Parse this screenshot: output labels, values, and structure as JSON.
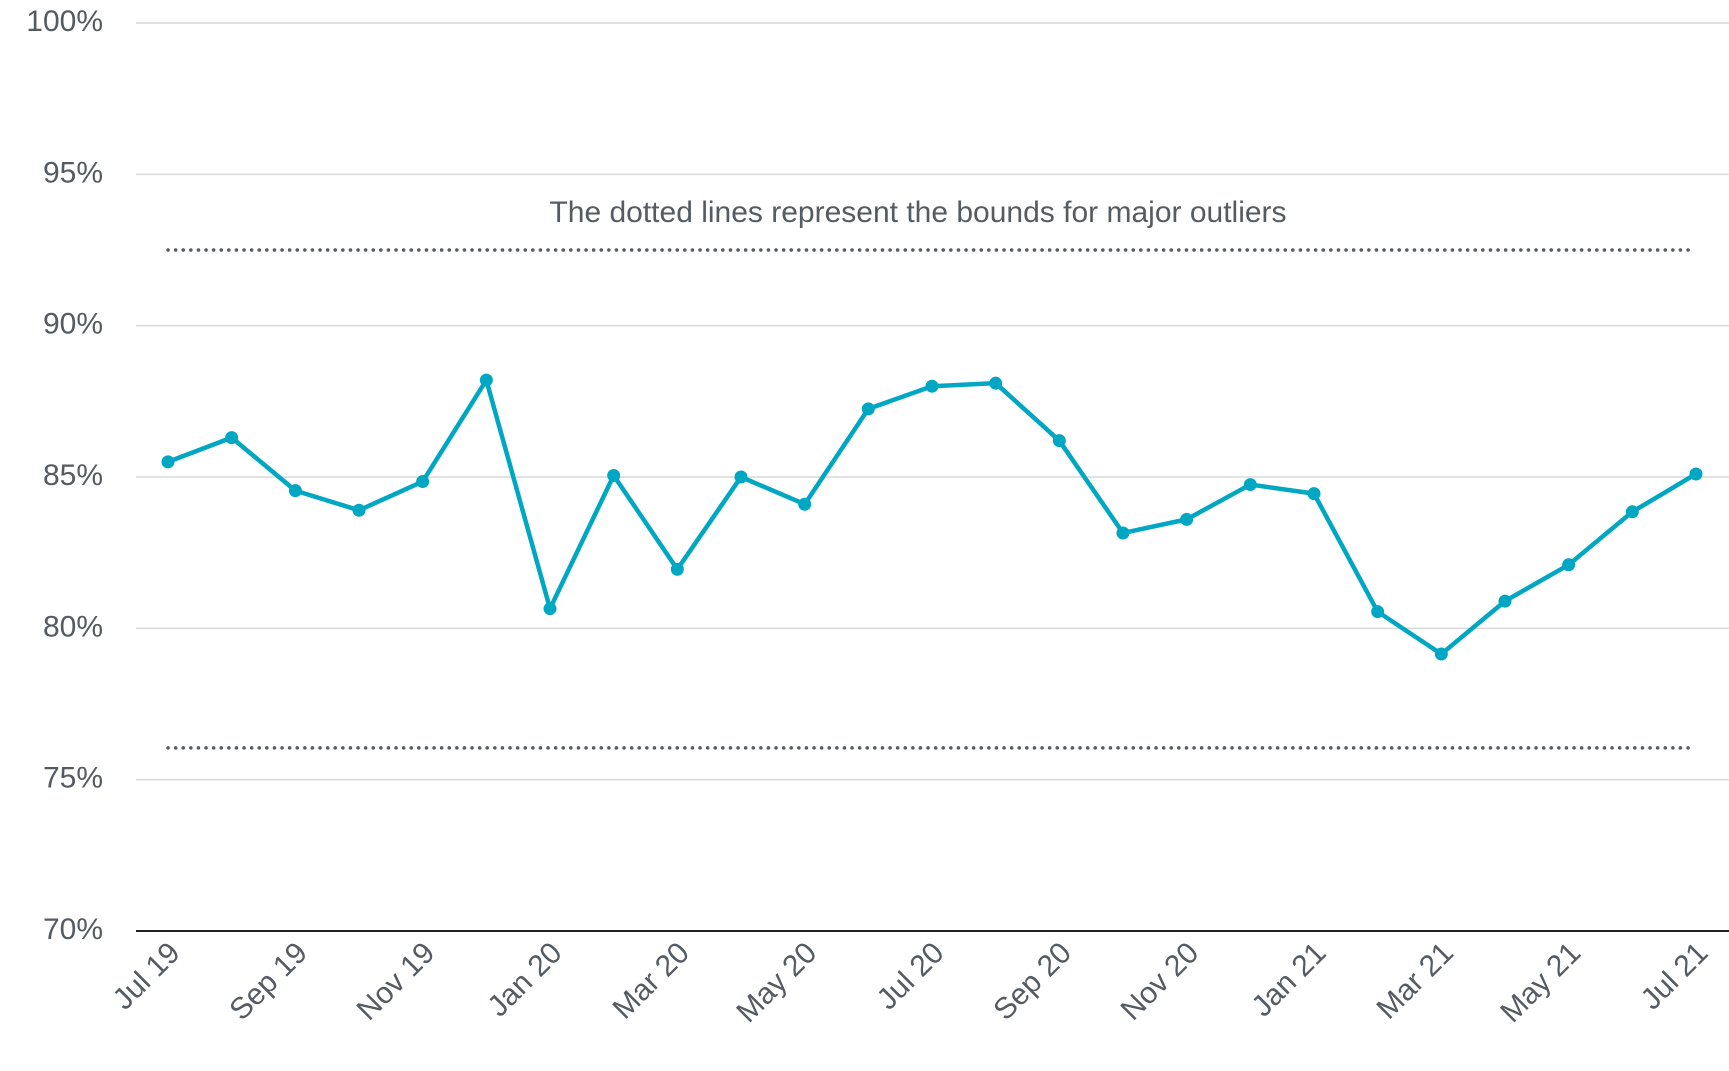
{
  "chart_data": {
    "type": "line",
    "annotation": "The dotted lines represent the bounds for major outliers",
    "categories": [
      "Jul 19",
      null,
      "Sep 19",
      null,
      "Nov 19",
      null,
      "Jan 20",
      null,
      "Mar 20",
      null,
      "May 20",
      null,
      "Jul 20",
      null,
      "Sep 20",
      null,
      "Nov 20",
      null,
      "Jan 21",
      null,
      "Mar 21",
      null,
      "May 21",
      null,
      "Jul 21"
    ],
    "series": [
      {
        "color": "#00a7c2",
        "values": [
          85.5,
          86.3,
          84.55,
          83.9,
          84.85,
          88.2,
          80.65,
          85.05,
          81.95,
          85.0,
          84.1,
          87.25,
          88.0,
          88.1,
          86.2,
          83.15,
          83.6,
          84.75,
          84.45,
          80.55,
          79.15,
          80.9,
          82.1,
          83.85,
          85.1
        ]
      }
    ],
    "reference_lines": [
      92.5,
      76.05
    ],
    "ylim": [
      70,
      100
    ],
    "yticks": [
      {
        "value": 70,
        "label": "70%"
      },
      {
        "value": 75,
        "label": "75%"
      },
      {
        "value": 80,
        "label": "80%"
      },
      {
        "value": 85,
        "label": "85%"
      },
      {
        "value": 90,
        "label": "90%"
      },
      {
        "value": 95,
        "label": "95%"
      },
      {
        "value": 100,
        "label": "100%"
      }
    ],
    "grid": true
  }
}
